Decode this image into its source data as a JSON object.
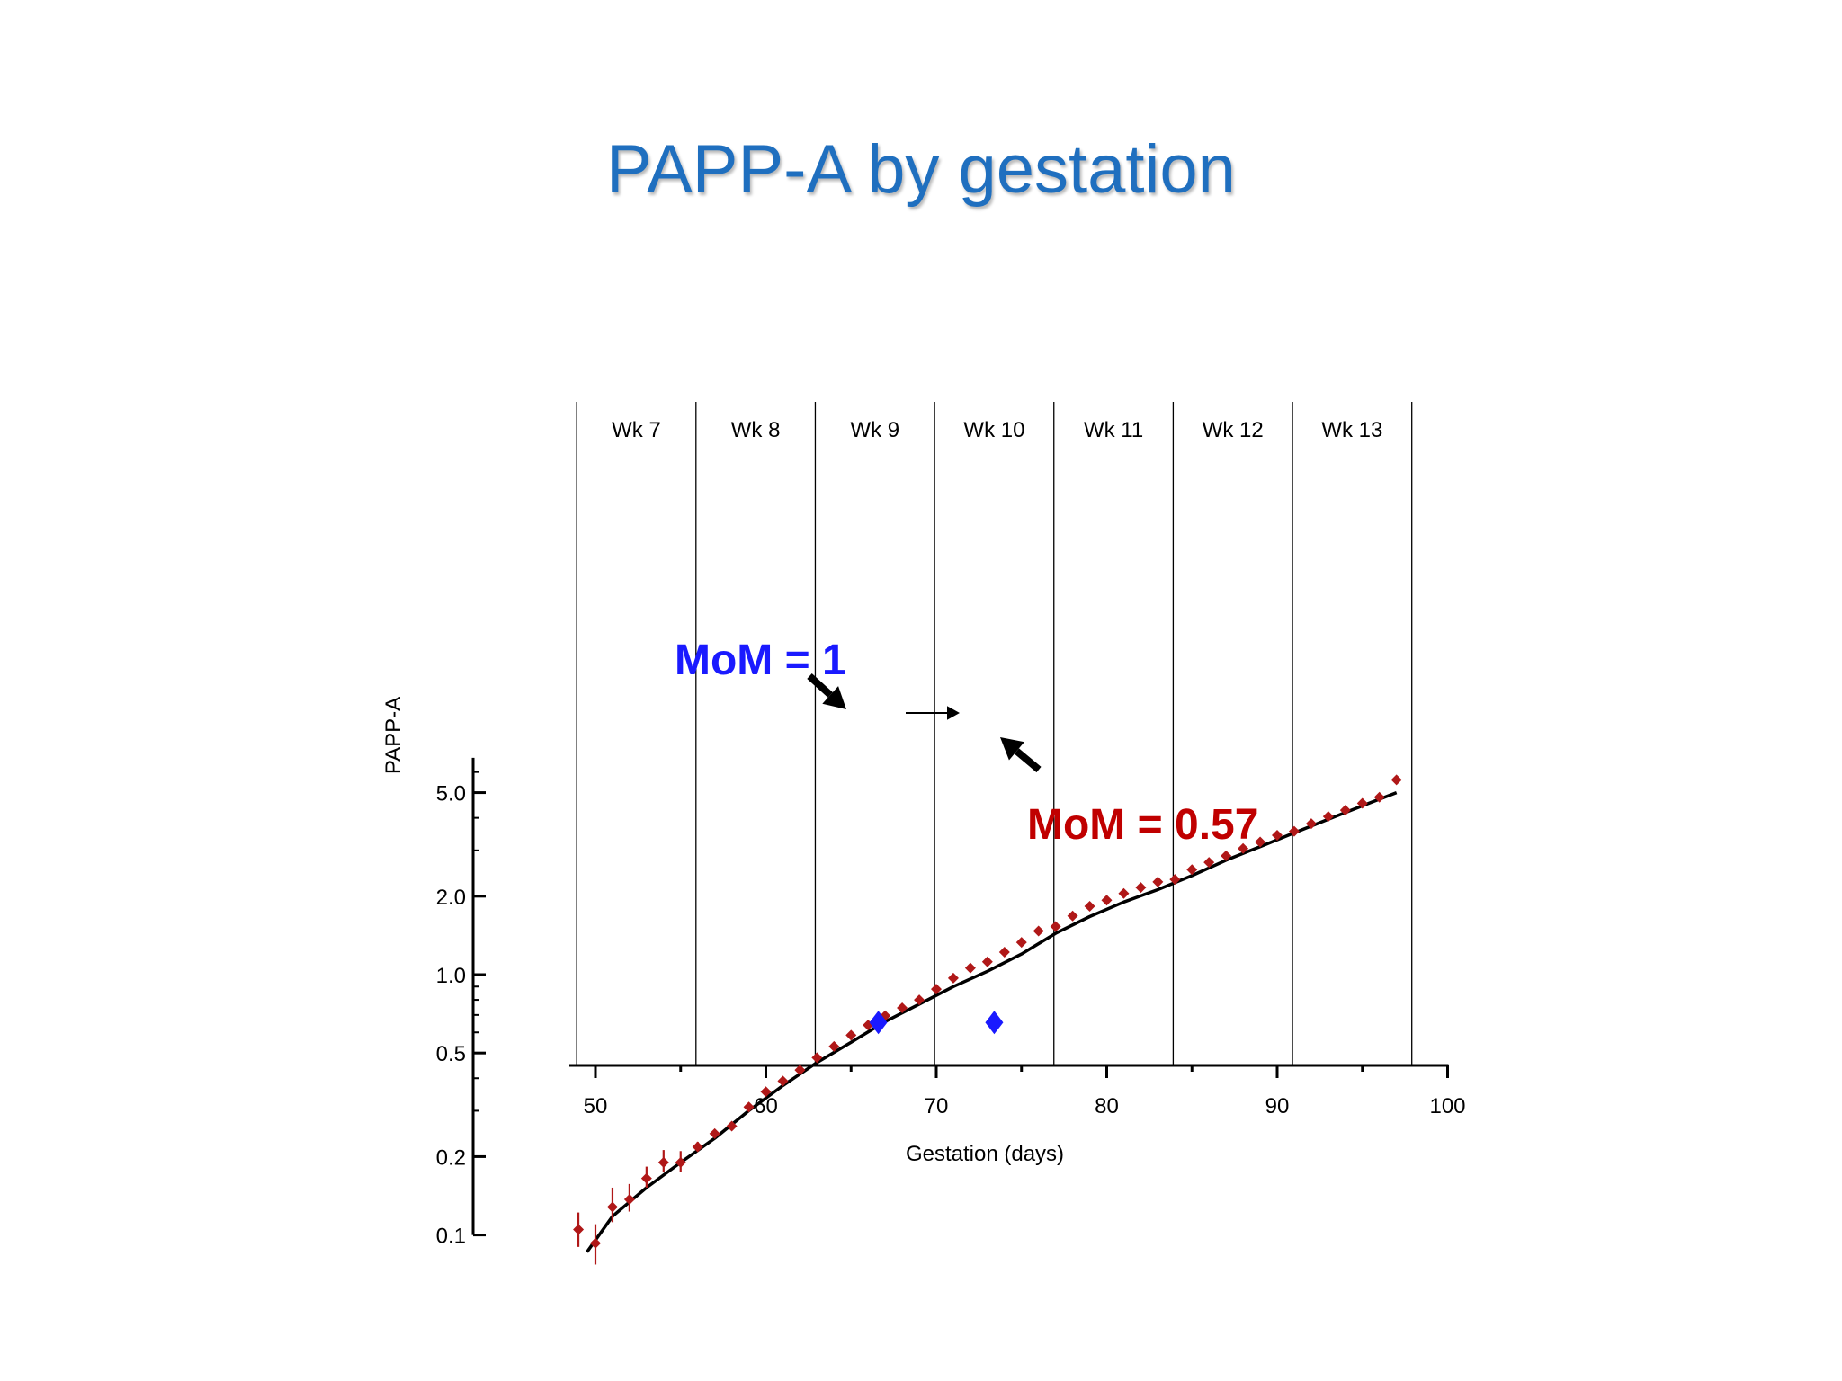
{
  "slide": {
    "title": "PAPP-A by gestation"
  },
  "chart_data": {
    "type": "scatter",
    "title": "PAPP-A by gestation",
    "xlabel": "Gestation (days)",
    "ylabel": "PAPP-A",
    "xlim": [
      48.5,
      100
    ],
    "xticks": [
      50,
      60,
      70,
      80,
      90,
      100
    ],
    "xtick_labels": [
      "50",
      "60",
      "70",
      "80",
      "90",
      "100"
    ],
    "yscale": "log",
    "ylim": [
      0.07,
      6.8
    ],
    "yticks": [
      0.1,
      0.2,
      0.5,
      1.0,
      2.0,
      5.0
    ],
    "ytick_labels": [
      "0.1",
      "0.2",
      "0.5",
      "1.0",
      "2.0",
      "5.0"
    ],
    "week_boundaries": [
      48.9,
      55.9,
      62.9,
      69.9,
      76.9,
      83.9,
      90.9,
      97.9
    ],
    "week_labels": [
      "Wk 7",
      "Wk 8",
      "Wk 9",
      "Wk 10",
      "Wk 11",
      "Wk 12",
      "Wk 13"
    ],
    "series": [
      {
        "type": "scatter",
        "color": "#b01818",
        "x": [
          49,
          50,
          51,
          52,
          53,
          54,
          55,
          56,
          57,
          58,
          59,
          60,
          61,
          62,
          63,
          64,
          65,
          66,
          67,
          68,
          69,
          70,
          71,
          72,
          73,
          74,
          75,
          76,
          77,
          78,
          79,
          80,
          81,
          82,
          83,
          84,
          85,
          86,
          87,
          88,
          89,
          90,
          91,
          92,
          93,
          94,
          95,
          96,
          97
        ],
        "y": [
          0.105,
          0.093,
          0.128,
          0.137,
          0.165,
          0.19,
          0.19,
          0.218,
          0.245,
          0.262,
          0.31,
          0.355,
          0.39,
          0.43,
          0.48,
          0.53,
          0.585,
          0.64,
          0.695,
          0.745,
          0.8,
          0.88,
          0.97,
          1.06,
          1.12,
          1.22,
          1.33,
          1.47,
          1.53,
          1.68,
          1.83,
          1.93,
          2.05,
          2.16,
          2.27,
          2.32,
          2.53,
          2.7,
          2.86,
          3.05,
          3.23,
          3.43,
          3.55,
          3.8,
          4.05,
          4.28,
          4.55,
          4.8,
          5.6
        ],
        "y_err_low": [
          0.09,
          0.077,
          0.112,
          0.123,
          0.152,
          0.174,
          0.175,
          0.21,
          0.24,
          0.26,
          0.31,
          0.355,
          0.39,
          0.43,
          0.48,
          0.53,
          0.585,
          0.64,
          0.695,
          0.745,
          0.8,
          0.88,
          0.97,
          1.06,
          1.12,
          1.22,
          1.33,
          1.47,
          1.53,
          1.68,
          1.83,
          1.93,
          2.05,
          2.16,
          2.27,
          2.32,
          2.53,
          2.7,
          2.86,
          3.05,
          3.23,
          3.43,
          3.55,
          3.8,
          4.05,
          4.28,
          4.55,
          4.8,
          5.6
        ],
        "y_err_high": [
          0.122,
          0.11,
          0.152,
          0.157,
          0.183,
          0.212,
          0.21,
          0.228,
          0.25,
          0.264,
          0.31,
          0.355,
          0.39,
          0.43,
          0.48,
          0.53,
          0.585,
          0.64,
          0.695,
          0.745,
          0.8,
          0.88,
          0.97,
          1.06,
          1.12,
          1.22,
          1.33,
          1.47,
          1.53,
          1.68,
          1.83,
          1.93,
          2.05,
          2.16,
          2.27,
          2.32,
          2.53,
          2.7,
          2.86,
          3.05,
          3.23,
          3.43,
          3.55,
          3.8,
          4.05,
          4.28,
          4.55,
          4.8,
          5.6
        ]
      },
      {
        "type": "line",
        "color": "#000000",
        "x": [
          49.5,
          51,
          53,
          55,
          57,
          59,
          61,
          63,
          65,
          67,
          69,
          71,
          73,
          75,
          77,
          79,
          81,
          83,
          85,
          87,
          89,
          91,
          93,
          95,
          97
        ],
        "y": [
          0.086,
          0.118,
          0.152,
          0.19,
          0.235,
          0.3,
          0.375,
          0.46,
          0.55,
          0.66,
          0.77,
          0.9,
          1.03,
          1.2,
          1.44,
          1.67,
          1.9,
          2.12,
          2.4,
          2.75,
          3.1,
          3.5,
          3.95,
          4.45,
          5.0
        ]
      }
    ],
    "highlight_points": [
      {
        "x": 66.6,
        "y": 0.655,
        "color": "#1a1aff"
      },
      {
        "x": 73.4,
        "y": 0.655,
        "color": "#1a1aff"
      }
    ],
    "annotations": [
      {
        "text": "MoM = 1",
        "color": "#1a1aff"
      },
      {
        "text": "MoM = 0.57",
        "color": "#c00000"
      }
    ]
  }
}
